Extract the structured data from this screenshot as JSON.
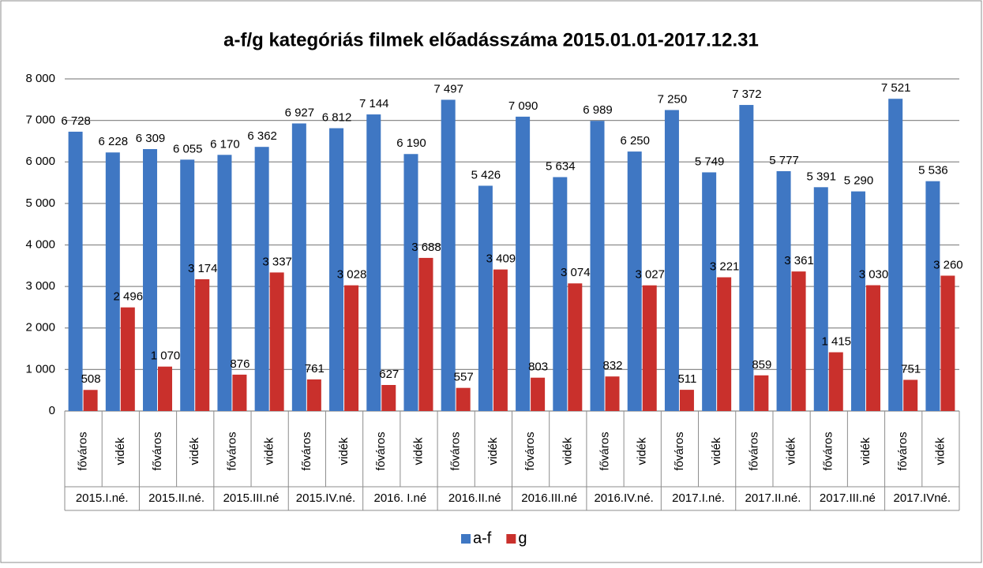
{
  "chart_data": {
    "type": "bar",
    "title": "a-f/g kategóriás filmek előadásszáma 2015.01.01-2017.12.31",
    "categories": [
      "főváros",
      "vidék",
      "főváros",
      "vidék",
      "főváros",
      "vidék",
      "főváros",
      "vidék",
      "főváros",
      "vidék",
      "főváros",
      "vidék",
      "főváros",
      "vidék",
      "főváros",
      "vidék",
      "főváros",
      "vidék",
      "főváros",
      "vidék",
      "főváros",
      "vidék",
      "főváros",
      "vidék"
    ],
    "groups": [
      "2015.I.né.",
      "2015.II.né.",
      "2015.III.né",
      "2015.IV.né.",
      "2016. I.né",
      "2016.II.né",
      "2016.III.né",
      "2016.IV.né.",
      "2017.I.né.",
      "2017.II.né.",
      "2017.III.né",
      "2017.IVné."
    ],
    "series": [
      {
        "name": "a-f",
        "color": "#3f77c3",
        "values": [
          6728,
          6228,
          6309,
          6055,
          6170,
          6362,
          6927,
          6812,
          7144,
          6190,
          7497,
          5426,
          7090,
          5634,
          6989,
          6250,
          7250,
          5749,
          7372,
          5777,
          5391,
          5290,
          7521,
          5536
        ],
        "value_labels": [
          "6 728",
          "6 228",
          "6 309",
          "6 055",
          "6 170",
          "6 362",
          "6 927",
          "6 812",
          "7 144",
          "6 190",
          "7 497",
          "5 426",
          "7 090",
          "5 634",
          "6 989",
          "6 250",
          "7 250",
          "5 749",
          "7 372",
          "5 777",
          "5 391",
          "5 290",
          "7 521",
          "5 536"
        ]
      },
      {
        "name": "g",
        "color": "#c9302c",
        "values": [
          508,
          2496,
          1070,
          3174,
          876,
          3337,
          761,
          3028,
          627,
          3688,
          557,
          3409,
          803,
          3074,
          832,
          3027,
          511,
          3221,
          859,
          3361,
          1415,
          3030,
          751,
          3260
        ],
        "value_labels": [
          "508",
          "2 496",
          "1 070",
          "3 174",
          "876",
          "3 337",
          "761",
          "3 028",
          "627",
          "3 688",
          "557",
          "3 409",
          "803",
          "3 074",
          "832",
          "3 027",
          "511",
          "3 221",
          "859",
          "3 361",
          "1 415",
          "3 030",
          "751",
          "3 260"
        ]
      }
    ],
    "ylim": [
      0,
      8000
    ],
    "yticks": [
      0,
      {
        "value": 1000,
        "label": "1 000"
      },
      {
        "value": 2000,
        "label": "2 000"
      },
      {
        "value": 3000,
        "label": "3 000"
      },
      {
        "value": 4000,
        "label": "4 000"
      },
      {
        "value": 5000,
        "label": "5 000"
      },
      {
        "value": 6000,
        "label": "6 000"
      },
      {
        "value": 7000,
        "label": "7 000"
      },
      {
        "value": 8000,
        "label": "8 000"
      }
    ],
    "grid": true,
    "legend": "bottom"
  }
}
